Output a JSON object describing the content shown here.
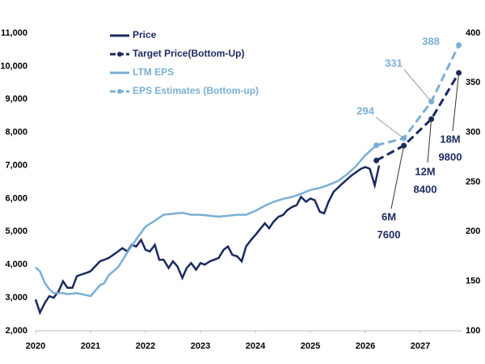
{
  "chart_data": {
    "type": "line",
    "xlim": [
      2020,
      2027.75
    ],
    "xticks": [
      2020,
      2021,
      2022,
      2023,
      2024,
      2025,
      2026,
      2027
    ],
    "ylim": [
      2000,
      11000
    ],
    "yticks": [
      {
        "value": 2000,
        "label": "2,000"
      },
      {
        "value": 3000,
        "label": "3,000"
      },
      {
        "value": 4000,
        "label": "4,000"
      },
      {
        "value": 5000,
        "label": "5,000"
      },
      {
        "value": 6000,
        "label": "6,000"
      },
      {
        "value": 7000,
        "label": "7,000"
      },
      {
        "value": 8000,
        "label": "8,000"
      },
      {
        "value": 9000,
        "label": "9,000"
      },
      {
        "value": 10000,
        "label": "10,000"
      },
      {
        "value": 11000,
        "label": "11,000"
      }
    ],
    "y2lim": [
      100,
      400
    ],
    "y2ticks": [
      100,
      150,
      200,
      250,
      300,
      350,
      400
    ],
    "series": [
      {
        "name": "Price",
        "color": "#1b2a5e",
        "dash": false,
        "markers": false,
        "x": [
          2020.0,
          2020.08,
          2020.17,
          2020.25,
          2020.33,
          2020.42,
          2020.5,
          2020.58,
          2020.67,
          2020.75,
          2020.83,
          2020.92,
          2021.0,
          2021.17,
          2021.33,
          2021.5,
          2021.58,
          2021.67,
          2021.75,
          2021.83,
          2021.92,
          2022.0,
          2022.08,
          2022.17,
          2022.25,
          2022.33,
          2022.42,
          2022.5,
          2022.58,
          2022.67,
          2022.75,
          2022.83,
          2022.92,
          2023.0,
          2023.08,
          2023.17,
          2023.25,
          2023.33,
          2023.42,
          2023.5,
          2023.58,
          2023.67,
          2023.75,
          2023.83,
          2023.92,
          2024.0,
          2024.17,
          2024.25,
          2024.33,
          2024.42,
          2024.5,
          2024.58,
          2024.67,
          2024.75,
          2024.83,
          2024.92,
          2025.0,
          2025.08,
          2025.17,
          2025.25,
          2025.33,
          2025.42,
          2025.58,
          2025.75,
          2025.92,
          2026.0,
          2026.08,
          2026.17,
          2026.25
        ],
        "values": [
          2950,
          2550,
          2850,
          3050,
          3000,
          3200,
          3500,
          3300,
          3300,
          3650,
          3700,
          3750,
          3800,
          4100,
          4200,
          4400,
          4500,
          4400,
          4600,
          4550,
          4750,
          4450,
          4400,
          4600,
          4150,
          4150,
          3900,
          4100,
          3950,
          3600,
          3900,
          4050,
          3850,
          4050,
          4000,
          4100,
          4150,
          4200,
          4450,
          4550,
          4300,
          4250,
          4100,
          4550,
          4750,
          4900,
          5250,
          5100,
          5300,
          5450,
          5500,
          5650,
          5750,
          5800,
          6050,
          5900,
          6000,
          5950,
          5600,
          5550,
          5900,
          6200,
          6450,
          6700,
          6900,
          6950,
          6900,
          6400,
          7000
        ]
      },
      {
        "name": "Target Price(Bottom-Up)",
        "color": "#1b2a5e",
        "dash": true,
        "markers": true,
        "x": [
          2026.2,
          2026.7,
          2027.2,
          2027.7
        ],
        "values": [
          7150,
          7600,
          8400,
          9800
        ],
        "horizon_labels": [
          "6M",
          "12M",
          "18M"
        ]
      },
      {
        "name": "LTM EPS",
        "color": "#7bafd4",
        "axis": "y2",
        "dash": false,
        "markers": false,
        "x": [
          2020.0,
          2020.08,
          2020.17,
          2020.25,
          2020.33,
          2020.5,
          2020.58,
          2020.75,
          2020.92,
          2021.0,
          2021.08,
          2021.17,
          2021.25,
          2021.33,
          2021.5,
          2021.67,
          2021.83,
          2022.0,
          2022.17,
          2022.33,
          2022.5,
          2022.67,
          2022.83,
          2023.0,
          2023.17,
          2023.33,
          2023.5,
          2023.67,
          2023.83,
          2024.0,
          2024.17,
          2024.33,
          2024.5,
          2024.67,
          2024.83,
          2025.0,
          2025.17,
          2025.33,
          2025.5,
          2025.67,
          2025.83,
          2026.0,
          2026.2
        ],
        "values": [
          164,
          160,
          148,
          142,
          138,
          138,
          137,
          138,
          136,
          135,
          140,
          146,
          148,
          156,
          164,
          179,
          192,
          205,
          211,
          217,
          218,
          219,
          217,
          217,
          216,
          215,
          216,
          217,
          217,
          221,
          226,
          230,
          233,
          235,
          238,
          242,
          244,
          247,
          251,
          258,
          266,
          277,
          287
        ]
      },
      {
        "name": "EPS Estimates (Bottom-up)",
        "color": "#7bafd4",
        "axis": "y2",
        "dash": true,
        "markers": true,
        "x": [
          2026.2,
          2026.7,
          2027.2,
          2027.7
        ],
        "values": [
          287,
          294,
          331,
          388
        ]
      }
    ]
  }
}
